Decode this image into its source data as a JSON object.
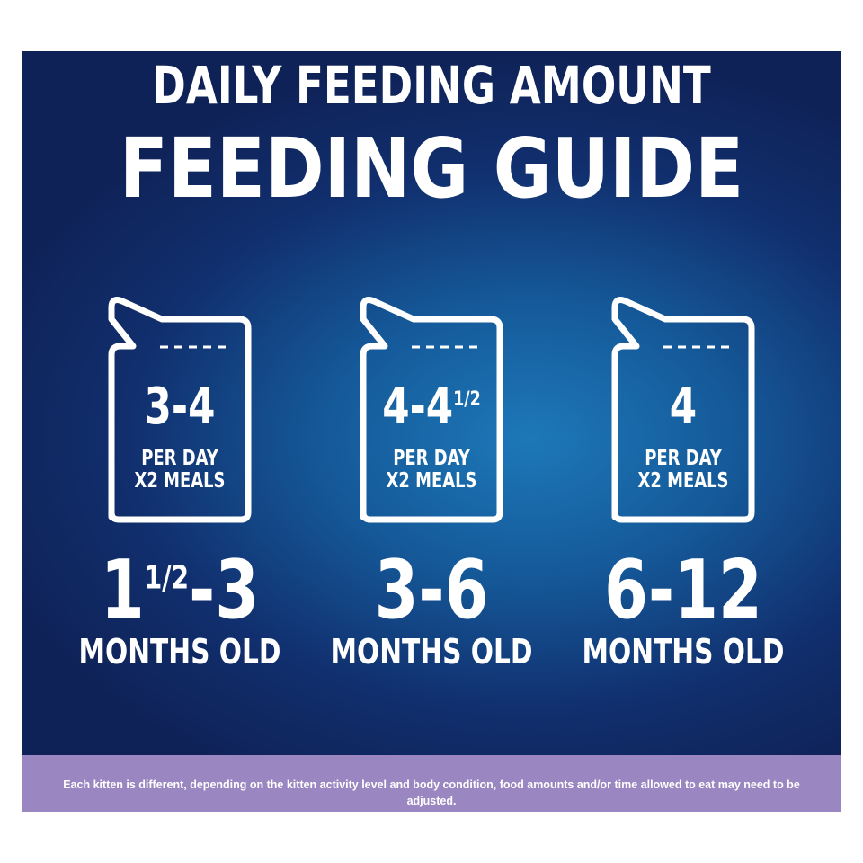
{
  "header": {
    "subtitle": "DAILY FEEDING AMOUNT",
    "title": "FEEDING GUIDE"
  },
  "columns": [
    {
      "amount": {
        "before": "3-4"
      },
      "per_day": "PER DAY",
      "meals": "X2 MEALS",
      "age": {
        "before": "1",
        "fraction": "1/2",
        "after": "-3"
      },
      "age_unit": "MONTHS OLD"
    },
    {
      "amount": {
        "before": "4-4",
        "fraction": "1/2"
      },
      "per_day": "PER DAY",
      "meals": "X2 MEALS",
      "age": {
        "before": "3-6"
      },
      "age_unit": "MONTHS OLD"
    },
    {
      "amount": {
        "before": "4"
      },
      "per_day": "PER DAY",
      "meals": "X2 MEALS",
      "age": {
        "before": "6-12"
      },
      "age_unit": "MONTHS OLD"
    }
  ],
  "footer": {
    "note": "Each kitten is different, depending on the kitten activity level and body condition, food amounts and/or time allowed to eat may need to be adjusted."
  }
}
